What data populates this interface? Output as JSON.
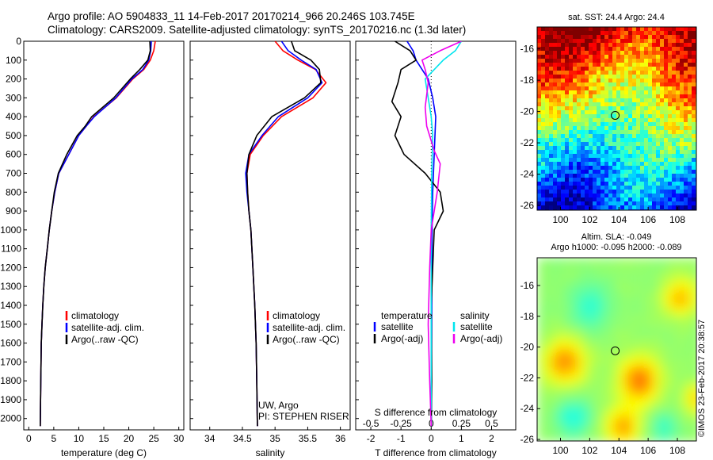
{
  "header": {
    "title_line1": "Argo profile: AO 5904833_11 14-Feb-2017 20170214_966 20.246S 103.745E",
    "title_line2": "Climatology: CARS2009. Satellite-adjusted climatology: synTS_20170216.nc (1.3d later)"
  },
  "stamp": "©IMOS 23-Feb-2017 20:38:57",
  "colors": {
    "climatology": "#ff0000",
    "satellite": "#0000ff",
    "argo": "#000000",
    "sat_salinity": "#00e5ee",
    "argo_salinity": "#ee00ee"
  },
  "chart_data": [
    {
      "type": "line",
      "panel": "temperature",
      "xlabel": "temperature (deg C)",
      "ylabel": "",
      "xlim": [
        -1,
        31
      ],
      "ylim": [
        2060,
        0
      ],
      "xticks": [
        0,
        5,
        10,
        15,
        20,
        25,
        30
      ],
      "yticks": [
        0,
        100,
        200,
        300,
        400,
        500,
        600,
        700,
        800,
        900,
        1000,
        1100,
        1200,
        1300,
        1400,
        1500,
        1600,
        1700,
        1800,
        1900,
        2000
      ],
      "grid": false,
      "legend": {
        "position": "lower-center",
        "labels": [
          "climatology",
          "satellite-adj. clim.",
          "Argo(..raw -QC)"
        ]
      },
      "series": [
        {
          "name": "climatology",
          "color": "#ff0000",
          "x": [
            25.3,
            25.0,
            24.3,
            23.0,
            20.8,
            17.5,
            13.0,
            11.5,
            10.0,
            8.0,
            6.0,
            5.2,
            4.6,
            4.1,
            3.7,
            3.3,
            3.0,
            2.8,
            2.65,
            2.5,
            2.4,
            2.3
          ],
          "y": [
            0,
            50,
            100,
            150,
            200,
            300,
            400,
            450,
            500,
            600,
            700,
            800,
            900,
            1000,
            1100,
            1200,
            1300,
            1400,
            1500,
            1600,
            1800,
            2040
          ]
        },
        {
          "name": "satellite-adj. clim.",
          "color": "#0000ff",
          "x": [
            24.5,
            24.4,
            24.0,
            22.8,
            20.6,
            17.4,
            13.1,
            11.5,
            10.0,
            8.0,
            6.0,
            5.2,
            4.6,
            4.1,
            3.7,
            3.3,
            3.0,
            2.8,
            2.65,
            2.5,
            2.4,
            2.3
          ],
          "y": [
            0,
            50,
            100,
            150,
            200,
            300,
            400,
            450,
            500,
            600,
            700,
            800,
            900,
            1000,
            1100,
            1200,
            1300,
            1400,
            1500,
            1600,
            1800,
            2040
          ]
        },
        {
          "name": "Argo(..raw -QC)",
          "color": "#000000",
          "x": [
            24.2,
            24.3,
            23.8,
            22.2,
            20.3,
            17.0,
            12.6,
            11.3,
            9.7,
            7.6,
            5.9,
            5.1,
            4.6,
            4.1,
            3.7,
            3.3,
            3.0,
            2.8,
            2.65,
            2.5,
            2.4,
            2.3
          ],
          "y": [
            0,
            50,
            100,
            150,
            200,
            300,
            400,
            450,
            500,
            600,
            700,
            800,
            900,
            1000,
            1100,
            1200,
            1300,
            1400,
            1500,
            1600,
            1800,
            2040
          ]
        }
      ]
    },
    {
      "type": "line",
      "panel": "salinity",
      "xlabel": "salinity",
      "xlim": [
        33.7,
        36.15
      ],
      "ylim": [
        2060,
        0
      ],
      "xticks": [
        34,
        34.5,
        35,
        35.5,
        36
      ],
      "legend": {
        "position": "lower-center",
        "labels": [
          "climatology",
          "satellite-adj. clim.",
          "Argo(..raw -QC)"
        ]
      },
      "annotation": [
        "UW, Argo",
        "PI: STEPHEN RISER"
      ],
      "series": [
        {
          "name": "climatology",
          "color": "#ff0000",
          "x": [
            35.0,
            35.12,
            35.35,
            35.62,
            35.78,
            35.58,
            35.1,
            34.82,
            34.62,
            34.57,
            34.58,
            34.6,
            34.63,
            34.66,
            34.69,
            34.71,
            34.72,
            34.73
          ],
          "y": [
            0,
            50,
            100,
            150,
            220,
            300,
            400,
            500,
            600,
            700,
            800,
            900,
            1000,
            1200,
            1400,
            1600,
            1800,
            2040
          ]
        },
        {
          "name": "satellite-adj. clim.",
          "color": "#0000ff",
          "x": [
            35.1,
            35.2,
            35.4,
            35.63,
            35.72,
            35.5,
            35.05,
            34.8,
            34.6,
            34.55,
            34.57,
            34.6,
            34.63,
            34.66,
            34.69,
            34.71,
            34.72,
            34.73
          ],
          "y": [
            0,
            50,
            100,
            150,
            220,
            300,
            400,
            500,
            600,
            700,
            800,
            900,
            1000,
            1200,
            1400,
            1600,
            1800,
            2040
          ]
        },
        {
          "name": "Argo(..raw -QC)",
          "color": "#000000",
          "x": [
            35.25,
            35.3,
            35.55,
            35.68,
            35.7,
            35.45,
            34.95,
            34.72,
            34.6,
            34.57,
            34.58,
            34.6,
            34.63,
            34.66,
            34.69,
            34.71,
            34.72,
            34.73
          ],
          "y": [
            0,
            50,
            100,
            150,
            220,
            300,
            400,
            500,
            600,
            700,
            800,
            900,
            1000,
            1200,
            1400,
            1600,
            1800,
            2040
          ]
        }
      ]
    },
    {
      "type": "line",
      "panel": "difference",
      "xlabel": "T difference from climatology",
      "xlabel_top": "S difference from climatology",
      "xlim": [
        -2.5,
        2.8
      ],
      "ylim": [
        2060,
        0
      ],
      "xticks": [
        -2,
        -1,
        0,
        1,
        2
      ],
      "top_ticks": [
        "-0.5",
        "-0.25",
        "0",
        "0.25",
        "0.5"
      ],
      "top_ticks_at": [
        -2,
        -1,
        0,
        1,
        2
      ],
      "legend": {
        "position": "lower-center",
        "columns": [
          {
            "header": "temperature",
            "labels": [
              "satellite",
              "Argo(-adj)"
            ]
          },
          {
            "header": "salinity",
            "labels": [
              "satellite",
              "Argo(-adj)"
            ]
          }
        ]
      },
      "series": [
        {
          "name": "T satellite",
          "color": "#0000ff",
          "x": [
            -0.8,
            -0.6,
            -0.5,
            -0.3,
            -0.1,
            0.05,
            0.15,
            0.1,
            0.05,
            0.03,
            0.02,
            0.01,
            0.0
          ],
          "y": [
            0,
            50,
            100,
            150,
            200,
            300,
            400,
            600,
            800,
            1000,
            1400,
            1800,
            2040
          ]
        },
        {
          "name": "T Argo(-adj)",
          "color": "#000000",
          "x": [
            -1.2,
            -0.7,
            -0.5,
            -1.0,
            -1.1,
            -1.3,
            -1.0,
            -1.2,
            -0.9,
            -0.2,
            0.3,
            0.4,
            0.1,
            0.05,
            0.0,
            0.02,
            0.0
          ],
          "y": [
            0,
            50,
            100,
            150,
            220,
            320,
            400,
            500,
            600,
            700,
            800,
            900,
            1000,
            1200,
            1400,
            1800,
            2040
          ]
        },
        {
          "name": "S satellite",
          "color": "#00e5ee",
          "x": [
            1.0,
            0.8,
            0.4,
            -0.2,
            -0.1,
            0.0,
            0.05,
            0.02,
            0.0,
            0.0,
            0.0
          ],
          "y": [
            0,
            50,
            100,
            200,
            300,
            400,
            500,
            700,
            1000,
            1500,
            2040
          ]
        },
        {
          "name": "S Argo(-adj)",
          "color": "#ee00ee",
          "x": [
            1.0,
            0.3,
            -0.3,
            -0.2,
            -0.1,
            -0.2,
            -0.15,
            0.1,
            0.3,
            0.2,
            0.0,
            -0.05,
            -0.1,
            -0.05,
            0.0
          ],
          "y": [
            0,
            50,
            100,
            150,
            220,
            350,
            450,
            580,
            650,
            800,
            1000,
            1200,
            1500,
            1800,
            2040
          ]
        }
      ]
    },
    {
      "type": "heatmap",
      "panel": "sst_map",
      "title": "sat. SST: 24.4  Argo: 24.4",
      "xlim": [
        98.4,
        109.3
      ],
      "ylim": [
        -26.3,
        -14.6
      ],
      "xticks": [
        100,
        102,
        104,
        106,
        108
      ],
      "yticks": [
        -16,
        -18,
        -20,
        -22,
        -24,
        -26
      ],
      "marker": {
        "lon": 103.745,
        "lat": -20.246
      }
    },
    {
      "type": "heatmap",
      "panel": "sla_map",
      "title": "Altim. SLA: -0.049",
      "subtitle": "Argo h1000: -0.095  h2000: -0.089",
      "xlim": [
        98.4,
        109.3
      ],
      "ylim": [
        -26.1,
        -14.2
      ],
      "xticks": [
        100,
        102,
        104,
        106,
        108
      ],
      "yticks": [
        -16,
        -18,
        -20,
        -22,
        -24,
        -26
      ],
      "marker": {
        "lon": 103.745,
        "lat": -20.246
      }
    }
  ]
}
